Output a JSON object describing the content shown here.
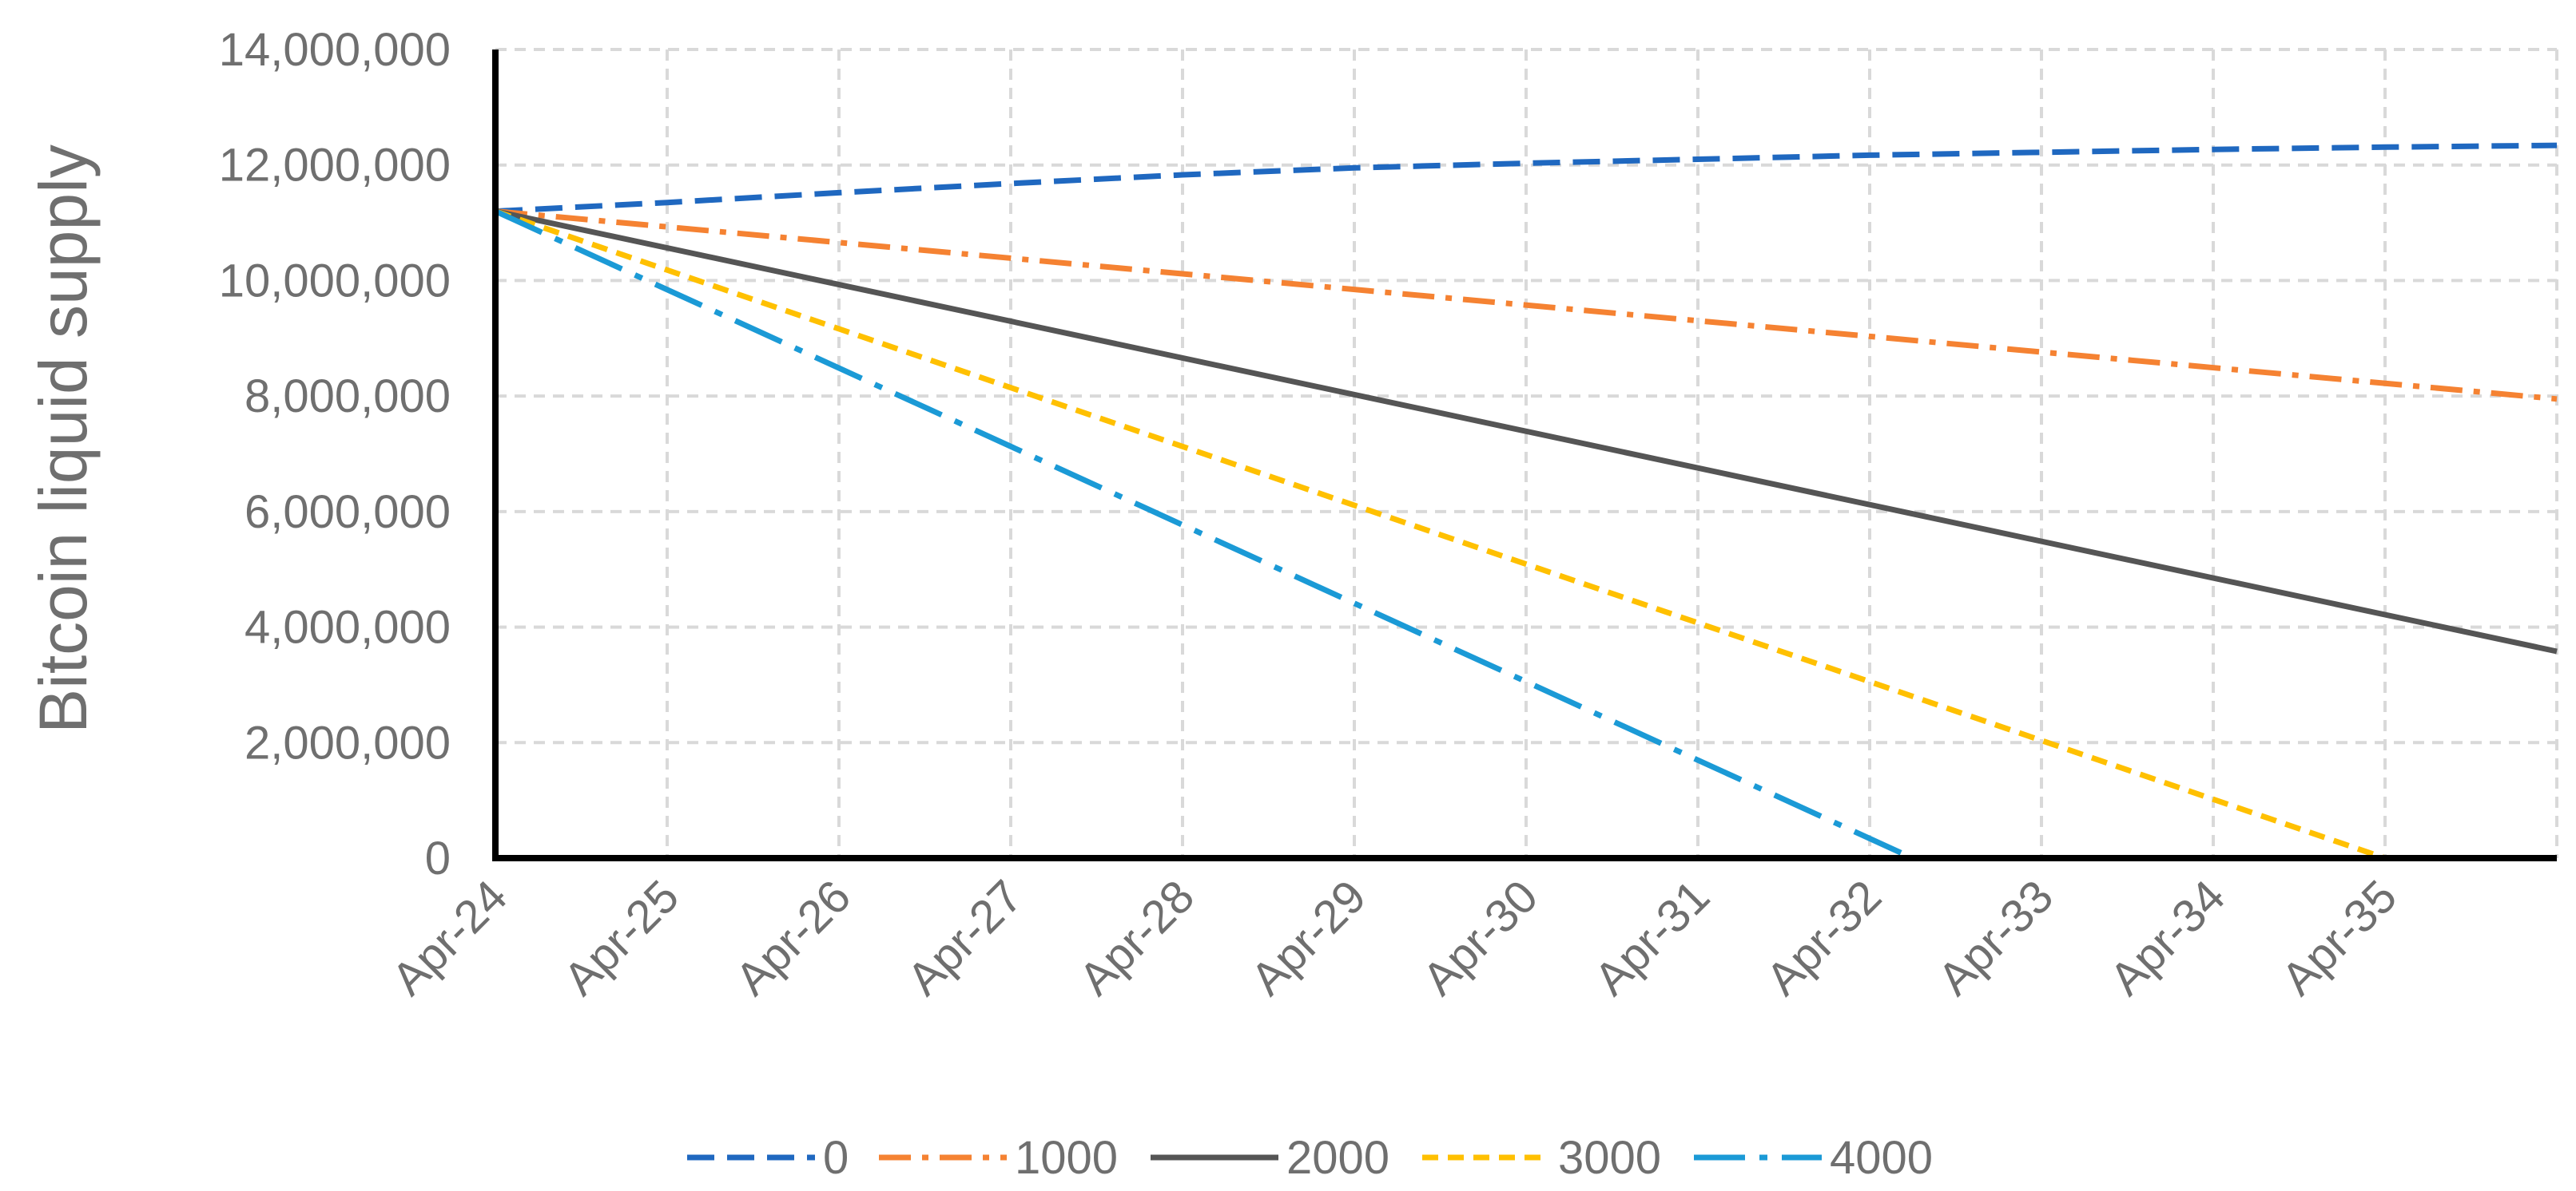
{
  "chart_data": {
    "type": "line",
    "title": "",
    "xlabel": "",
    "ylabel": "Bitcoin liquid supply",
    "x_ticks": [
      "Apr-24",
      "Apr-25",
      "Apr-26",
      "Apr-27",
      "Apr-28",
      "Apr-29",
      "Apr-30",
      "Apr-31",
      "Apr-32",
      "Apr-33",
      "Apr-34",
      "Apr-35"
    ],
    "y_ticks": [
      0,
      2000000,
      4000000,
      6000000,
      8000000,
      10000000,
      12000000,
      14000000
    ],
    "y_tick_labels": [
      "0",
      "2,000,000",
      "4,000,000",
      "6,000,000",
      "8,000,000",
      "10,000,000",
      "12,000,000",
      "14,000,000"
    ],
    "xlim": [
      "2024-04",
      "2036-04"
    ],
    "ylim": [
      0,
      14000000
    ],
    "grid": true,
    "legend_position": "bottom",
    "series": [
      {
        "name": "0",
        "color": "#1f68c0",
        "dash": "dash",
        "points": [
          [
            "2024-04",
            11200000
          ],
          [
            "2025-04",
            11350000
          ],
          [
            "2026-04",
            11520000
          ],
          [
            "2027-04",
            11680000
          ],
          [
            "2028-04",
            11830000
          ],
          [
            "2029-04",
            11950000
          ],
          [
            "2030-04",
            12030000
          ],
          [
            "2031-04",
            12100000
          ],
          [
            "2032-04",
            12170000
          ],
          [
            "2033-04",
            12220000
          ],
          [
            "2034-04",
            12270000
          ],
          [
            "2035-04",
            12310000
          ],
          [
            "2036-04",
            12340000
          ]
        ]
      },
      {
        "name": "1000",
        "color": "#f58232",
        "dash": "dashdot",
        "points": [
          [
            "2024-04",
            11200000
          ],
          [
            "2036-04",
            7950000
          ]
        ]
      },
      {
        "name": "2000",
        "color": "#555555",
        "dash": "solid",
        "points": [
          [
            "2024-04",
            11200000
          ],
          [
            "2036-04",
            3580000
          ]
        ]
      },
      {
        "name": "3000",
        "color": "#ffc000",
        "dash": "shortdash",
        "points": [
          [
            "2024-04",
            11200000
          ],
          [
            "2035-04",
            0
          ]
        ]
      },
      {
        "name": "4000",
        "color": "#1b9ad6",
        "dash": "longdashdot",
        "points": [
          [
            "2024-04",
            11200000
          ],
          [
            "2032-07",
            0
          ]
        ]
      }
    ]
  }
}
